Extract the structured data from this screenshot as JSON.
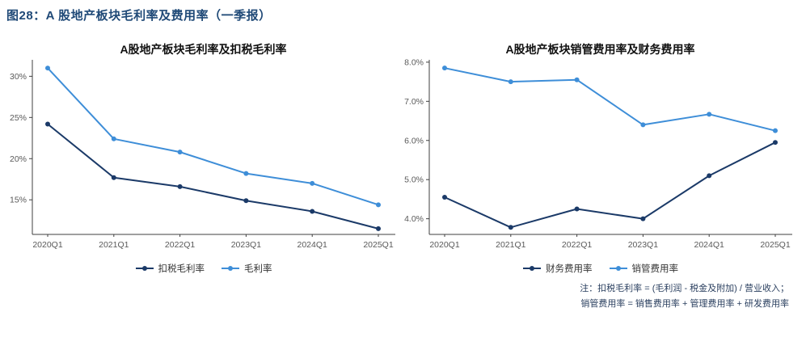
{
  "figure_title": "图28：A 股地产板块毛利率及费用率（一季报）",
  "notes": {
    "line1": "注：扣税毛利率 = (毛利润 - 税金及附加) / 营业收入；",
    "line2": "销管费用率 = 销售费用率 + 管理费用率 + 研发费用率"
  },
  "colors": {
    "figure_title": "#1F4977",
    "series_dark": "#1B3A68",
    "series_light": "#3E8ED8",
    "axis": "#3f3f3f",
    "tick_label": "#595959"
  },
  "chart_data": [
    {
      "type": "line",
      "title": "A股地产板块毛利率及扣税毛利率",
      "x": [
        "2020Q1",
        "2021Q1",
        "2022Q1",
        "2023Q1",
        "2024Q1",
        "2025Q1"
      ],
      "ylim": [
        10.8,
        32.0
      ],
      "grid": false,
      "legend_position": "bottom",
      "y_ticks": [
        {
          "value": 15,
          "label": "15%"
        },
        {
          "value": 20,
          "label": "20%"
        },
        {
          "value": 25,
          "label": "25%"
        },
        {
          "value": 30,
          "label": "30%"
        }
      ],
      "series": [
        {
          "name": "扣税毛利率",
          "color": "#1B3A68",
          "values": [
            24.2,
            17.7,
            16.6,
            14.9,
            13.6,
            11.5
          ]
        },
        {
          "name": "毛利率",
          "color": "#3E8ED8",
          "values": [
            31.0,
            22.4,
            20.8,
            18.2,
            17.0,
            14.4
          ]
        }
      ]
    },
    {
      "type": "line",
      "title": "A股地产板块销管费用率及财务费用率",
      "x": [
        "2020Q1",
        "2021Q1",
        "2022Q1",
        "2023Q1",
        "2024Q1",
        "2025Q1"
      ],
      "ylim": [
        3.6,
        8.06
      ],
      "grid": false,
      "legend_position": "bottom",
      "y_ticks": [
        {
          "value": 4,
          "label": "4.0%"
        },
        {
          "value": 5,
          "label": "5.0%"
        },
        {
          "value": 6,
          "label": "6.0%"
        },
        {
          "value": 7,
          "label": "7.0%"
        },
        {
          "value": 8,
          "label": "8.0%"
        }
      ],
      "series": [
        {
          "name": "财务费用率",
          "color": "#1B3A68",
          "values": [
            4.55,
            3.78,
            4.25,
            4.0,
            5.1,
            5.95
          ]
        },
        {
          "name": "销管费用率",
          "color": "#3E8ED8",
          "values": [
            7.85,
            7.5,
            7.55,
            6.4,
            6.67,
            6.25
          ]
        }
      ]
    }
  ]
}
